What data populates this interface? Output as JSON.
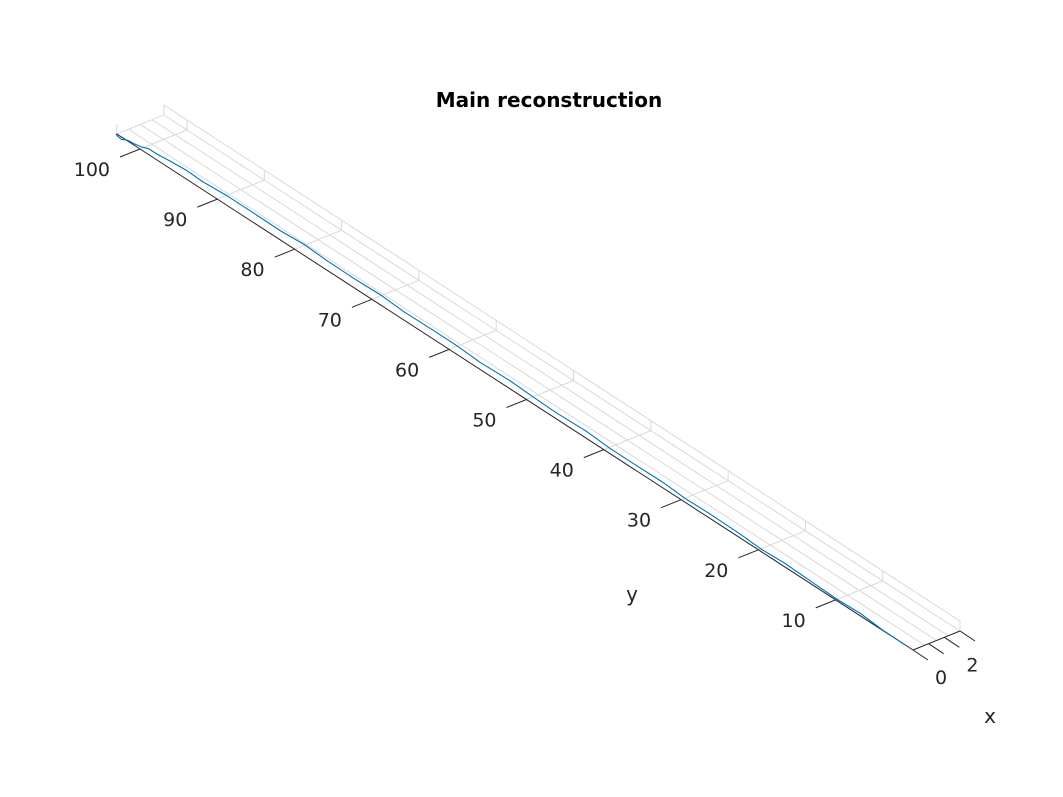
{
  "chart_data": {
    "type": "line",
    "title": "Main reconstruction",
    "xlabel": "x",
    "ylabel": "y",
    "x_ticks": [
      "0",
      "2"
    ],
    "y_ticks": [
      "10",
      "20",
      "30",
      "40",
      "50",
      "60",
      "70",
      "80",
      "90",
      "100"
    ],
    "xlim": [
      0,
      3
    ],
    "ylim": [
      0,
      103
    ],
    "grid": true,
    "line_color": "#0072BD",
    "series": [
      {
        "x": [
          0,
          0.05,
          0.1,
          0.12,
          0.15,
          0.18,
          0.2,
          0.22,
          0.25,
          0.28,
          0.3,
          0.32,
          0.35,
          0.38,
          0.4,
          0.42,
          0.45,
          0.48,
          0.5,
          0.52,
          0.55,
          0.56,
          0.58,
          0.6,
          0.62,
          0.6,
          0.58,
          0.55,
          0.53,
          0.5,
          0.45,
          0.4,
          0.3,
          0.2,
          0.1,
          0.0,
          -0.1,
          -0.1,
          -0.05,
          0.0
        ],
        "y": [
          1,
          4,
          7,
          10,
          13,
          17,
          20,
          23,
          27,
          30,
          33,
          37,
          40,
          43,
          47,
          50,
          53,
          57,
          60,
          63,
          67,
          70,
          73,
          77,
          80,
          83,
          87,
          90,
          93,
          95,
          97,
          98.5,
          99.5,
          100.3,
          101,
          101.6,
          102.2,
          102.8,
          103,
          103
        ]
      }
    ]
  }
}
